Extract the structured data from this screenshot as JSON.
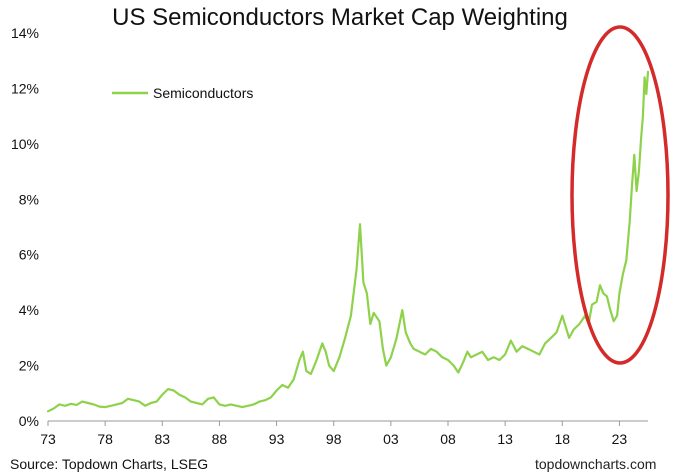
{
  "chart_data": {
    "type": "line",
    "title": "US Semiconductors Market Cap Weighting",
    "xlabel": "",
    "ylabel": "",
    "xlim": [
      1973,
      2025.5
    ],
    "ylim": [
      0,
      14
    ],
    "x_tick_values": [
      1973,
      1978,
      1983,
      1988,
      1993,
      1998,
      2003,
      2008,
      2013,
      2018,
      2023
    ],
    "x_tick_labels": [
      "73",
      "78",
      "83",
      "88",
      "93",
      "98",
      "03",
      "08",
      "13",
      "18",
      "23"
    ],
    "y_tick_values": [
      0,
      2,
      4,
      6,
      8,
      10,
      12,
      14
    ],
    "y_tick_labels": [
      "0%",
      "2%",
      "4%",
      "6%",
      "8%",
      "10%",
      "12%",
      "14%"
    ],
    "grid": false,
    "legend_position": "top-left",
    "series": [
      {
        "name": "Semiconductors",
        "color": "#8ed24c",
        "points": [
          [
            1973.0,
            0.35
          ],
          [
            1973.5,
            0.45
          ],
          [
            1974.0,
            0.6
          ],
          [
            1974.5,
            0.55
          ],
          [
            1975.0,
            0.62
          ],
          [
            1975.5,
            0.58
          ],
          [
            1976.0,
            0.7
          ],
          [
            1976.5,
            0.65
          ],
          [
            1977.0,
            0.6
          ],
          [
            1977.5,
            0.52
          ],
          [
            1978.0,
            0.5
          ],
          [
            1978.5,
            0.55
          ],
          [
            1979.0,
            0.6
          ],
          [
            1979.5,
            0.65
          ],
          [
            1980.0,
            0.8
          ],
          [
            1980.5,
            0.75
          ],
          [
            1981.0,
            0.7
          ],
          [
            1981.5,
            0.55
          ],
          [
            1982.0,
            0.65
          ],
          [
            1982.5,
            0.7
          ],
          [
            1983.0,
            0.95
          ],
          [
            1983.5,
            1.15
          ],
          [
            1984.0,
            1.1
          ],
          [
            1984.5,
            0.95
          ],
          [
            1985.0,
            0.85
          ],
          [
            1985.5,
            0.7
          ],
          [
            1986.0,
            0.65
          ],
          [
            1986.5,
            0.6
          ],
          [
            1987.0,
            0.8
          ],
          [
            1987.5,
            0.85
          ],
          [
            1988.0,
            0.6
          ],
          [
            1988.5,
            0.55
          ],
          [
            1989.0,
            0.6
          ],
          [
            1989.5,
            0.55
          ],
          [
            1990.0,
            0.5
          ],
          [
            1990.5,
            0.55
          ],
          [
            1991.0,
            0.6
          ],
          [
            1991.5,
            0.7
          ],
          [
            1992.0,
            0.75
          ],
          [
            1992.5,
            0.85
          ],
          [
            1993.0,
            1.1
          ],
          [
            1993.5,
            1.3
          ],
          [
            1994.0,
            1.2
          ],
          [
            1994.5,
            1.5
          ],
          [
            1995.0,
            2.2
          ],
          [
            1995.3,
            2.5
          ],
          [
            1995.6,
            1.8
          ],
          [
            1996.0,
            1.7
          ],
          [
            1996.5,
            2.2
          ],
          [
            1997.0,
            2.8
          ],
          [
            1997.3,
            2.5
          ],
          [
            1997.6,
            2.0
          ],
          [
            1998.0,
            1.8
          ],
          [
            1998.5,
            2.3
          ],
          [
            1999.0,
            3.0
          ],
          [
            1999.5,
            3.8
          ],
          [
            2000.0,
            5.5
          ],
          [
            2000.3,
            7.1
          ],
          [
            2000.6,
            5.0
          ],
          [
            2000.9,
            4.6
          ],
          [
            2001.2,
            3.5
          ],
          [
            2001.5,
            3.9
          ],
          [
            2002.0,
            3.6
          ],
          [
            2002.3,
            2.6
          ],
          [
            2002.6,
            2.0
          ],
          [
            2003.0,
            2.3
          ],
          [
            2003.5,
            3.0
          ],
          [
            2004.0,
            4.0
          ],
          [
            2004.3,
            3.2
          ],
          [
            2004.7,
            2.8
          ],
          [
            2005.0,
            2.6
          ],
          [
            2005.5,
            2.5
          ],
          [
            2006.0,
            2.4
          ],
          [
            2006.5,
            2.6
          ],
          [
            2007.0,
            2.5
          ],
          [
            2007.5,
            2.3
          ],
          [
            2008.0,
            2.2
          ],
          [
            2008.5,
            2.0
          ],
          [
            2008.9,
            1.75
          ],
          [
            2009.3,
            2.1
          ],
          [
            2009.7,
            2.5
          ],
          [
            2010.0,
            2.3
          ],
          [
            2010.5,
            2.4
          ],
          [
            2011.0,
            2.5
          ],
          [
            2011.5,
            2.2
          ],
          [
            2012.0,
            2.3
          ],
          [
            2012.5,
            2.2
          ],
          [
            2013.0,
            2.4
          ],
          [
            2013.5,
            2.9
          ],
          [
            2014.0,
            2.5
          ],
          [
            2014.5,
            2.7
          ],
          [
            2015.0,
            2.6
          ],
          [
            2015.5,
            2.5
          ],
          [
            2016.0,
            2.4
          ],
          [
            2016.5,
            2.8
          ],
          [
            2017.0,
            3.0
          ],
          [
            2017.5,
            3.2
          ],
          [
            2018.0,
            3.8
          ],
          [
            2018.3,
            3.4
          ],
          [
            2018.6,
            3.0
          ],
          [
            2019.0,
            3.3
          ],
          [
            2019.5,
            3.5
          ],
          [
            2020.0,
            3.8
          ],
          [
            2020.3,
            3.5
          ],
          [
            2020.6,
            4.2
          ],
          [
            2021.0,
            4.3
          ],
          [
            2021.3,
            4.9
          ],
          [
            2021.6,
            4.6
          ],
          [
            2021.9,
            4.5
          ],
          [
            2022.2,
            4.0
          ],
          [
            2022.5,
            3.6
          ],
          [
            2022.8,
            3.8
          ],
          [
            2023.0,
            4.6
          ],
          [
            2023.3,
            5.3
          ],
          [
            2023.6,
            5.8
          ],
          [
            2023.9,
            7.2
          ],
          [
            2024.1,
            8.5
          ],
          [
            2024.3,
            9.6
          ],
          [
            2024.5,
            8.3
          ],
          [
            2024.7,
            9.0
          ],
          [
            2024.9,
            10.2
          ],
          [
            2025.05,
            11.0
          ],
          [
            2025.2,
            12.4
          ],
          [
            2025.35,
            11.8
          ],
          [
            2025.5,
            12.6
          ]
        ]
      }
    ]
  },
  "source_note": "Source: Topdown Charts, LSEG",
  "watermark": "topdowncharts.com",
  "highlight_color": "#d42a2a",
  "axis_color": "#9a9a9a"
}
